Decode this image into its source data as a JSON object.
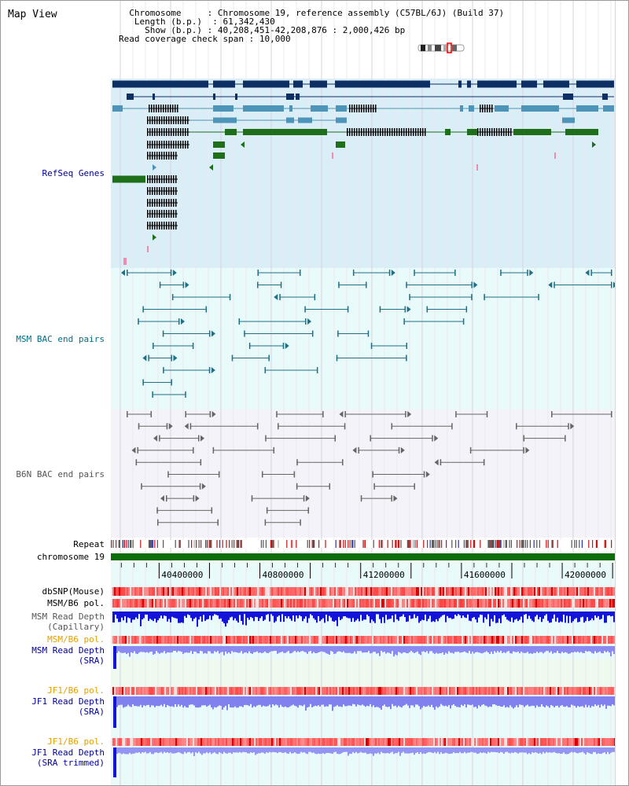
{
  "title": "Map View",
  "header": {
    "chromosome_label": "Chromosome",
    "chromosome_value": "Chromosome 19, reference assembly (C57BL/6J) (Build 37)",
    "length_label": "Length (b.p.)",
    "length_value": "61,342,430",
    "show_label": "Show (b.p.)",
    "show_value": "40,208,451-42,208,876 : 2,000,426 bp",
    "coverage_label": "Read coverage check span",
    "coverage_value": "10,000"
  },
  "tracks": {
    "refseq": "RefSeq Genes",
    "msm_bac": "MSM BAC end pairs",
    "b6n_bac": "B6N BAC end pairs",
    "repeat": "Repeat",
    "chromosome": "chromosome 19",
    "dbsnp": "dbSNP(Mouse)",
    "msm_b6_pol_1": "MSM/B6 pol.",
    "msm_read_depth_cap_1": "MSM Read Depth",
    "msm_read_depth_cap_2": "(Capillary)",
    "msm_b6_pol_2": "MSM/B6 pol.",
    "msm_read_depth_sra_1": "MSM Read Depth",
    "msm_read_depth_sra_2": "(SRA)",
    "jf1_b6_pol_1": "JF1/B6 pol.",
    "jf1_read_depth_sra_1": "JF1 Read Depth",
    "jf1_read_depth_sra_2": "(SRA)",
    "jf1_b6_pol_2": "JF1/B6 pol.",
    "jf1_read_depth_trim_1": "JF1 Read Depth",
    "jf1_read_depth_trim_2": "(SRA trimmed)"
  },
  "axis": {
    "ticks": [
      "40400000",
      "40800000",
      "41200000",
      "41600000",
      "42000000"
    ],
    "tick_values": [
      40400000,
      40800000,
      41200000,
      41600000,
      42000000
    ],
    "range": [
      40208451,
      42208876
    ]
  },
  "colors": {
    "navy": "#0d2f63",
    "steel": "#4d94b8",
    "green": "#1f6e1a",
    "teal": "#1f6f85",
    "grey": "#666666",
    "label_blue": "#000099",
    "label_teal": "#006f85",
    "label_orange": "#e6a000"
  }
}
